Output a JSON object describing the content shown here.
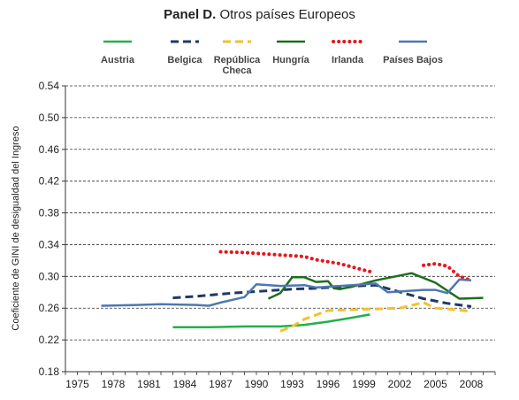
{
  "title": {
    "bold": "Panel D.",
    "rest": "Otros países Europeos"
  },
  "chart_data": {
    "type": "line",
    "title": "Panel D. Otros países Europeos",
    "ylabel": "Coeficiente de GINI de desigualdad del Ingreso",
    "xlabel": "",
    "xlim": [
      1974,
      2010
    ],
    "ylim": [
      0.18,
      0.54
    ],
    "x_ticks": [
      1975,
      1978,
      1981,
      1984,
      1987,
      1990,
      1993,
      1996,
      1999,
      2002,
      2005,
      2008
    ],
    "y_ticks": [
      "0.18",
      "0.22",
      "0.26",
      "0.30",
      "0.34",
      "0.38",
      "0.42",
      "0.46",
      "0.50",
      "0.54"
    ],
    "grid": "horizontal dashed",
    "legend_position": "top",
    "series": [
      {
        "name": "Austria",
        "color": "#22b04b",
        "style": "solid",
        "points": [
          [
            1983,
            0.236
          ],
          [
            1986,
            0.236
          ],
          [
            1989,
            0.237
          ],
          [
            1992,
            0.237
          ],
          [
            1994,
            0.239
          ],
          [
            1996,
            0.243
          ],
          [
            1998,
            0.248
          ],
          [
            1999.5,
            0.252
          ]
        ]
      },
      {
        "name": "Belgica",
        "color": "#1f3864",
        "style": "dashed",
        "points": [
          [
            1983,
            0.273
          ],
          [
            1985,
            0.275
          ],
          [
            1988,
            0.279
          ],
          [
            1991,
            0.282
          ],
          [
            1993,
            0.284
          ],
          [
            1995,
            0.285
          ],
          [
            1997,
            0.287
          ],
          [
            2000,
            0.289
          ],
          [
            2004,
            0.272
          ],
          [
            2006,
            0.266
          ],
          [
            2008,
            0.262
          ]
        ]
      },
      {
        "name": "República Checa",
        "color": "#f2c12e",
        "style": "dashed",
        "points": [
          [
            1992,
            0.231
          ],
          [
            1993,
            0.237
          ],
          [
            1994,
            0.246
          ],
          [
            1996,
            0.257
          ],
          [
            1998,
            0.258
          ],
          [
            2000,
            0.259
          ],
          [
            2002,
            0.26
          ],
          [
            2004,
            0.267
          ],
          [
            2005,
            0.26
          ],
          [
            2006,
            0.259
          ],
          [
            2008,
            0.256
          ]
        ]
      },
      {
        "name": "Hungría",
        "color": "#1c6e1c",
        "style": "solid",
        "points": [
          [
            1991,
            0.272
          ],
          [
            1992,
            0.279
          ],
          [
            1993,
            0.299
          ],
          [
            1994,
            0.299
          ],
          [
            1995,
            0.293
          ],
          [
            1996,
            0.294
          ],
          [
            1996.5,
            0.285
          ],
          [
            1997,
            0.284
          ],
          [
            1998,
            0.287
          ],
          [
            2000,
            0.295
          ],
          [
            2003,
            0.304
          ],
          [
            2005,
            0.292
          ],
          [
            2006,
            0.282
          ],
          [
            2007,
            0.272
          ],
          [
            2009,
            0.273
          ]
        ]
      },
      {
        "name": "Irlanda",
        "color": "#e8141c",
        "style": "dotted",
        "segments": [
          [
            [
              1987,
              0.331
            ],
            [
              1989,
              0.33
            ],
            [
              1991,
              0.328
            ],
            [
              1993,
              0.326
            ],
            [
              1994,
              0.325
            ],
            [
              1995,
              0.321
            ],
            [
              1997,
              0.316
            ],
            [
              1999,
              0.308
            ],
            [
              1999.8,
              0.305
            ]
          ],
          [
            [
              2004,
              0.314
            ],
            [
              2005,
              0.316
            ],
            [
              2006,
              0.313
            ],
            [
              2007,
              0.3
            ],
            [
              2008,
              0.295
            ]
          ]
        ]
      },
      {
        "name": "Países Bajos",
        "color": "#4f77b0",
        "style": "solid",
        "points": [
          [
            1977,
            0.263
          ],
          [
            1980,
            0.264
          ],
          [
            1982,
            0.265
          ],
          [
            1985,
            0.264
          ],
          [
            1986,
            0.263
          ],
          [
            1987,
            0.267
          ],
          [
            1989,
            0.274
          ],
          [
            1990,
            0.29
          ],
          [
            1992,
            0.288
          ],
          [
            1994,
            0.289
          ],
          [
            1995,
            0.286
          ],
          [
            1996,
            0.287
          ],
          [
            1998,
            0.289
          ],
          [
            2000,
            0.291
          ],
          [
            2001,
            0.28
          ],
          [
            2002,
            0.281
          ],
          [
            2004,
            0.283
          ],
          [
            2005,
            0.283
          ],
          [
            2006,
            0.279
          ],
          [
            2007,
            0.296
          ],
          [
            2008,
            0.295
          ]
        ]
      }
    ]
  }
}
